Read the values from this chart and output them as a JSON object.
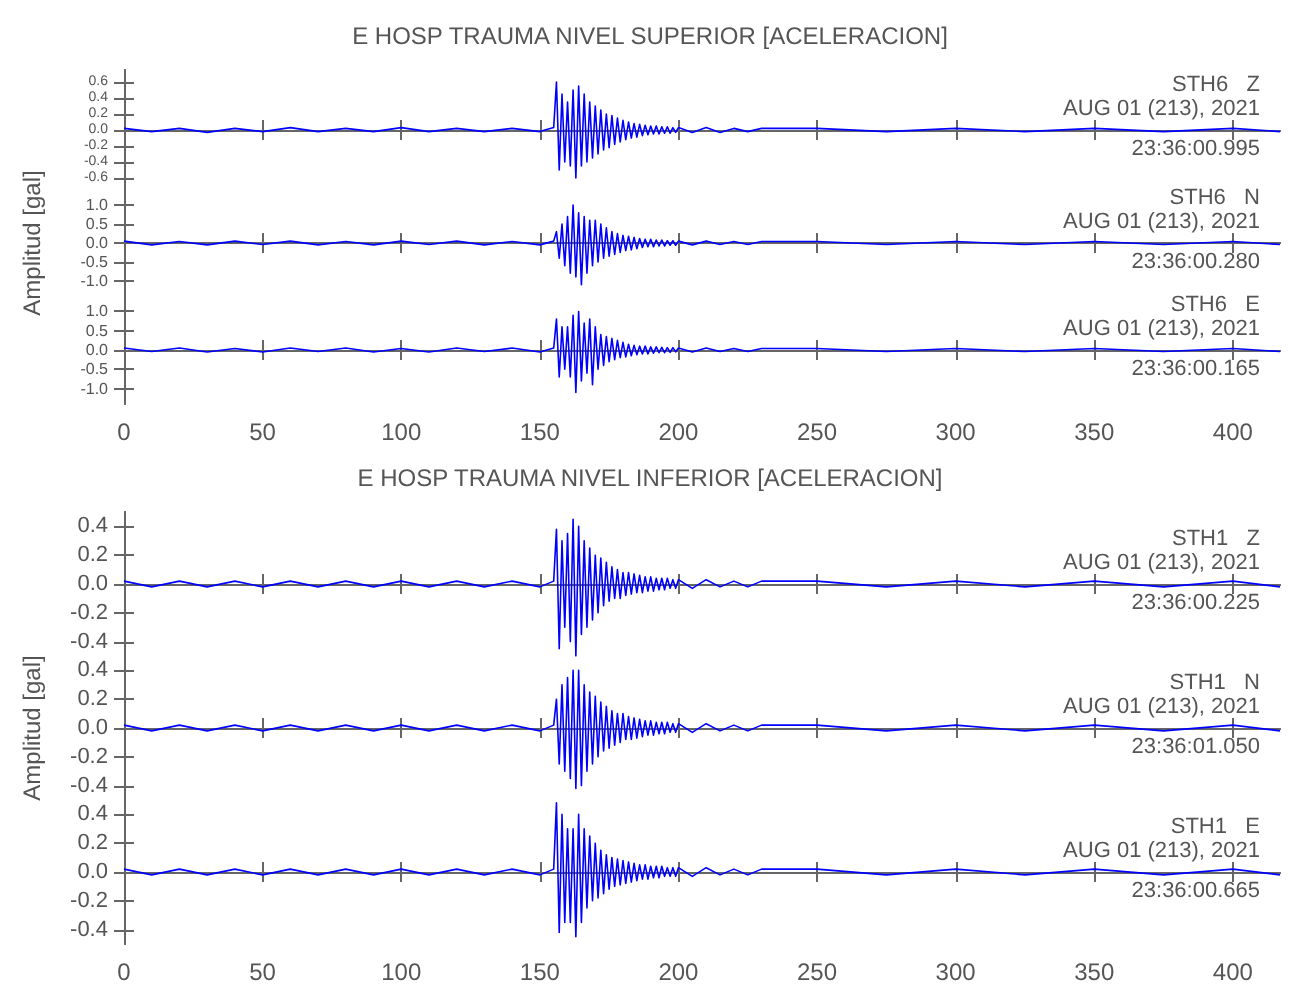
{
  "chart_data": [
    {
      "type": "line",
      "title": "E HOSP TRAUMA NIVEL SUPERIOR [ACELERACION]",
      "marker": "none",
      "tick_labels": "y",
      "xlim": [
        0,
        417
      ],
      "xticks": [
        0,
        50,
        100,
        150,
        200,
        250,
        300,
        350,
        400
      ],
      "ylim": [
        -0.75,
        0.75
      ],
      "yticks": [
        -0.6,
        -0.4,
        -0.2,
        {
          "value": 0,
          "label": "0.0"
        },
        0.2,
        0.4,
        0.6
      ],
      "annotations": [
        "STH6   Z",
        "AUG 01 (213), 2021",
        "23:36:00.995"
      ],
      "x": [
        0,
        10,
        20,
        30,
        40,
        50,
        60,
        70,
        80,
        90,
        100,
        110,
        120,
        130,
        140,
        150,
        155,
        156,
        157,
        158,
        159,
        160,
        161,
        162,
        163,
        164,
        165,
        166,
        167,
        168,
        169,
        170,
        171,
        172,
        173,
        174,
        175,
        176,
        177,
        178,
        179,
        180,
        181,
        182,
        183,
        184,
        185,
        186,
        187,
        188,
        189,
        190,
        191,
        192,
        193,
        194,
        195,
        196,
        197,
        198,
        199,
        200,
        205,
        210,
        215,
        220,
        225,
        230,
        250,
        275,
        300,
        325,
        350,
        375,
        400,
        417
      ],
      "series": [
        {
          "color": "#0000ff",
          "values": [
            0.02,
            -0.02,
            0.02,
            -0.03,
            0.02,
            -0.02,
            0.03,
            -0.02,
            0.02,
            -0.02,
            0.03,
            -0.02,
            0.02,
            -0.02,
            0.02,
            -0.02,
            0.03,
            0.6,
            -0.5,
            0.45,
            -0.4,
            0.35,
            -0.45,
            0.5,
            -0.6,
            0.55,
            -0.45,
            0.45,
            -0.4,
            0.35,
            -0.35,
            0.3,
            -0.3,
            0.25,
            -0.25,
            0.2,
            -0.22,
            0.18,
            -0.18,
            0.15,
            -0.15,
            0.12,
            -0.12,
            0.1,
            -0.1,
            0.08,
            -0.09,
            0.07,
            -0.07,
            0.06,
            -0.06,
            0.05,
            -0.05,
            0.05,
            -0.05,
            0.04,
            -0.04,
            0.04,
            -0.04,
            0.03,
            -0.03,
            0.03,
            -0.03,
            0.03,
            -0.03,
            0.02,
            -0.02,
            0.02,
            0.02,
            -0.02,
            0.02,
            -0.02,
            0.02,
            -0.02,
            0.02,
            -0.02
          ]
        }
      ]
    },
    {
      "type": "line",
      "ylabel": "Amplitud [gal]",
      "marker": "none",
      "tick_labels": "y",
      "xlim": [
        0,
        417
      ],
      "xticks": [
        0,
        50,
        100,
        150,
        200,
        250,
        300,
        350,
        400
      ],
      "ylim": [
        -1.4,
        1.4
      ],
      "yticks": [
        {
          "value": -1,
          "label": "-1.0"
        },
        -0.5,
        {
          "value": 0,
          "label": "0.0"
        },
        0.5,
        {
          "value": 1,
          "label": "1.0"
        }
      ],
      "annotations": [
        "STH6   N",
        "AUG 01 (213), 2021",
        "23:36:00.280"
      ],
      "x": [
        0,
        10,
        20,
        30,
        40,
        50,
        60,
        70,
        80,
        90,
        100,
        110,
        120,
        130,
        140,
        150,
        155,
        156,
        157,
        158,
        159,
        160,
        161,
        162,
        163,
        164,
        165,
        166,
        167,
        168,
        169,
        170,
        171,
        172,
        173,
        174,
        175,
        176,
        177,
        178,
        179,
        180,
        181,
        182,
        183,
        184,
        185,
        186,
        187,
        188,
        189,
        190,
        191,
        192,
        193,
        194,
        195,
        196,
        197,
        198,
        199,
        200,
        205,
        210,
        215,
        220,
        225,
        230,
        250,
        275,
        300,
        325,
        350,
        375,
        400,
        417
      ],
      "series": [
        {
          "color": "#0000ff",
          "values": [
            0.05,
            -0.05,
            0.04,
            -0.05,
            0.05,
            -0.04,
            0.05,
            -0.05,
            0.04,
            -0.05,
            0.05,
            -0.04,
            0.05,
            -0.05,
            0.04,
            -0.05,
            0.05,
            0.3,
            -0.4,
            0.5,
            -0.6,
            0.7,
            -0.8,
            1.0,
            -0.9,
            0.8,
            -1.1,
            0.7,
            -0.8,
            0.6,
            -0.6,
            0.6,
            -0.5,
            0.5,
            -0.4,
            0.4,
            -0.35,
            0.3,
            -0.3,
            0.25,
            -0.25,
            0.2,
            -0.2,
            0.18,
            -0.18,
            0.15,
            -0.15,
            0.12,
            -0.12,
            0.1,
            -0.1,
            0.1,
            -0.1,
            0.08,
            -0.08,
            0.08,
            -0.08,
            0.06,
            -0.06,
            0.06,
            -0.06,
            0.05,
            -0.05,
            0.05,
            -0.04,
            0.04,
            -0.04,
            0.04,
            0.04,
            -0.04,
            0.04,
            -0.04,
            0.04,
            -0.04,
            0.04,
            -0.04
          ]
        }
      ]
    },
    {
      "type": "line",
      "marker": "none",
      "xlim": [
        0,
        417
      ],
      "xticks": [
        0,
        50,
        100,
        150,
        200,
        250,
        300,
        350,
        400
      ],
      "ylim": [
        -1.4,
        1.4
      ],
      "yticks": [
        {
          "value": -1,
          "label": "-1.0"
        },
        -0.5,
        {
          "value": 0,
          "label": "0.0"
        },
        0.5,
        {
          "value": 1,
          "label": "1.0"
        }
      ],
      "annotations": [
        "STH6   E",
        "AUG 01 (213), 2021",
        "23:36:00.165"
      ],
      "x": [
        0,
        10,
        20,
        30,
        40,
        50,
        60,
        70,
        80,
        90,
        100,
        110,
        120,
        130,
        140,
        150,
        155,
        156,
        157,
        158,
        159,
        160,
        161,
        162,
        163,
        164,
        165,
        166,
        167,
        168,
        169,
        170,
        171,
        172,
        173,
        174,
        175,
        176,
        177,
        178,
        179,
        180,
        181,
        182,
        183,
        184,
        185,
        186,
        187,
        188,
        189,
        190,
        191,
        192,
        193,
        194,
        195,
        196,
        197,
        198,
        199,
        200,
        205,
        210,
        215,
        220,
        225,
        230,
        250,
        275,
        300,
        325,
        350,
        375,
        400,
        417
      ],
      "series": [
        {
          "color": "#0000ff",
          "values": [
            0.05,
            -0.04,
            0.05,
            -0.05,
            0.04,
            -0.05,
            0.05,
            -0.04,
            0.05,
            -0.05,
            0.04,
            -0.05,
            0.05,
            -0.04,
            0.05,
            -0.05,
            0.05,
            0.8,
            -0.7,
            0.6,
            -0.5,
            0.6,
            -0.7,
            0.9,
            -1.1,
            1.0,
            -0.8,
            0.7,
            -0.6,
            0.8,
            -0.9,
            0.6,
            -0.5,
            0.4,
            -0.4,
            0.35,
            -0.3,
            0.3,
            -0.25,
            0.25,
            -0.2,
            0.2,
            -0.18,
            0.15,
            -0.15,
            0.12,
            -0.12,
            0.1,
            -0.1,
            0.1,
            -0.1,
            0.08,
            -0.08,
            0.08,
            -0.07,
            0.07,
            -0.07,
            0.06,
            -0.06,
            0.06,
            -0.05,
            0.05,
            -0.05,
            0.05,
            -0.04,
            0.04,
            -0.04,
            0.04,
            0.04,
            -0.04,
            0.04,
            -0.04,
            0.04,
            -0.04,
            0.04,
            -0.04
          ]
        }
      ]
    },
    {
      "type": "line",
      "title": "E HOSP TRAUMA NIVEL INFERIOR [ACELERACION]",
      "marker": "none",
      "tick_labels": "y",
      "xlim": [
        0,
        417
      ],
      "xticks": [
        0,
        50,
        100,
        150,
        200,
        250,
        300,
        350,
        400
      ],
      "ylim": [
        -0.5,
        0.5
      ],
      "yticks": [
        -0.4,
        -0.2,
        {
          "value": 0,
          "label": "0.0"
        },
        0.2,
        0.4
      ],
      "annotations": [
        "STH1   Z",
        "AUG 01 (213), 2021",
        "23:36:00.225"
      ],
      "x": [
        0,
        10,
        20,
        30,
        40,
        50,
        60,
        70,
        80,
        90,
        100,
        110,
        120,
        130,
        140,
        150,
        155,
        156,
        157,
        158,
        159,
        160,
        161,
        162,
        163,
        164,
        165,
        166,
        167,
        168,
        169,
        170,
        171,
        172,
        173,
        174,
        175,
        176,
        177,
        178,
        179,
        180,
        181,
        182,
        183,
        184,
        185,
        186,
        187,
        188,
        189,
        190,
        191,
        192,
        193,
        194,
        195,
        196,
        197,
        198,
        199,
        200,
        205,
        210,
        215,
        220,
        225,
        230,
        250,
        275,
        300,
        325,
        350,
        375,
        400,
        417
      ],
      "series": [
        {
          "color": "#0000ff",
          "values": [
            0.02,
            -0.02,
            0.02,
            -0.02,
            0.02,
            -0.02,
            0.02,
            -0.02,
            0.02,
            -0.02,
            0.02,
            -0.02,
            0.02,
            -0.02,
            0.02,
            -0.02,
            0.02,
            0.38,
            -0.45,
            0.3,
            -0.3,
            0.35,
            -0.4,
            0.45,
            -0.5,
            0.4,
            -0.35,
            0.3,
            -0.3,
            0.25,
            -0.25,
            0.2,
            -0.2,
            0.18,
            -0.15,
            0.15,
            -0.12,
            0.12,
            -0.1,
            0.1,
            -0.1,
            0.08,
            -0.08,
            0.08,
            -0.07,
            0.07,
            -0.06,
            0.06,
            -0.06,
            0.05,
            -0.05,
            0.05,
            -0.05,
            0.04,
            -0.04,
            0.04,
            -0.04,
            0.04,
            -0.03,
            0.03,
            -0.03,
            0.03,
            -0.03,
            0.03,
            -0.02,
            0.02,
            -0.02,
            0.02,
            0.02,
            -0.02,
            0.02,
            -0.02,
            0.02,
            -0.02,
            0.02,
            -0.02
          ]
        }
      ]
    },
    {
      "type": "line",
      "ylabel": "Amplitud [gal]",
      "marker": "none",
      "tick_labels": "y",
      "xlim": [
        0,
        417
      ],
      "xticks": [
        0,
        50,
        100,
        150,
        200,
        250,
        300,
        350,
        400
      ],
      "ylim": [
        -0.5,
        0.5
      ],
      "yticks": [
        -0.4,
        -0.2,
        {
          "value": 0,
          "label": "0.0"
        },
        0.2,
        0.4
      ],
      "annotations": [
        "STH1   N",
        "AUG 01 (213), 2021",
        "23:36:01.050"
      ],
      "x": [
        0,
        10,
        20,
        30,
        40,
        50,
        60,
        70,
        80,
        90,
        100,
        110,
        120,
        130,
        140,
        150,
        155,
        156,
        157,
        158,
        159,
        160,
        161,
        162,
        163,
        164,
        165,
        166,
        167,
        168,
        169,
        170,
        171,
        172,
        173,
        174,
        175,
        176,
        177,
        178,
        179,
        180,
        181,
        182,
        183,
        184,
        185,
        186,
        187,
        188,
        189,
        190,
        191,
        192,
        193,
        194,
        195,
        196,
        197,
        198,
        199,
        200,
        205,
        210,
        215,
        220,
        225,
        230,
        250,
        275,
        300,
        325,
        350,
        375,
        400,
        417
      ],
      "series": [
        {
          "color": "#0000ff",
          "values": [
            0.02,
            -0.02,
            0.02,
            -0.02,
            0.02,
            -0.02,
            0.02,
            -0.02,
            0.02,
            -0.02,
            0.02,
            -0.02,
            0.02,
            -0.02,
            0.02,
            -0.02,
            0.02,
            0.2,
            -0.25,
            0.3,
            -0.3,
            0.35,
            -0.35,
            0.4,
            -0.42,
            0.4,
            -0.4,
            0.3,
            -0.3,
            0.25,
            -0.25,
            0.22,
            -0.2,
            0.18,
            -0.16,
            0.15,
            -0.14,
            0.12,
            -0.12,
            0.1,
            -0.1,
            0.1,
            -0.08,
            0.08,
            -0.08,
            0.07,
            -0.07,
            0.06,
            -0.06,
            0.05,
            -0.05,
            0.05,
            -0.05,
            0.04,
            -0.04,
            0.04,
            -0.04,
            0.04,
            -0.03,
            0.03,
            -0.03,
            0.03,
            -0.03,
            0.03,
            -0.02,
            0.02,
            -0.02,
            0.02,
            0.02,
            -0.02,
            0.02,
            -0.02,
            0.02,
            -0.02,
            0.02,
            -0.02
          ]
        }
      ]
    },
    {
      "type": "line",
      "marker": "none",
      "xlim": [
        0,
        417
      ],
      "xticks": [
        0,
        50,
        100,
        150,
        200,
        250,
        300,
        350,
        400
      ],
      "ylim": [
        -0.5,
        0.5
      ],
      "yticks": [
        -0.4,
        -0.2,
        {
          "value": 0,
          "label": "0.0"
        },
        0.2,
        0.4
      ],
      "annotations": [
        "STH1   E",
        "AUG 01 (213), 2021",
        "23:36:00.665"
      ],
      "x": [
        0,
        10,
        20,
        30,
        40,
        50,
        60,
        70,
        80,
        90,
        100,
        110,
        120,
        130,
        140,
        150,
        155,
        156,
        157,
        158,
        159,
        160,
        161,
        162,
        163,
        164,
        165,
        166,
        167,
        168,
        169,
        170,
        171,
        172,
        173,
        174,
        175,
        176,
        177,
        178,
        179,
        180,
        181,
        182,
        183,
        184,
        185,
        186,
        187,
        188,
        189,
        190,
        191,
        192,
        193,
        194,
        195,
        196,
        197,
        198,
        199,
        200,
        205,
        210,
        215,
        220,
        225,
        230,
        250,
        275,
        300,
        325,
        350,
        375,
        400,
        417
      ],
      "series": [
        {
          "color": "#0000ff",
          "values": [
            0.02,
            -0.02,
            0.02,
            -0.02,
            0.02,
            -0.02,
            0.02,
            -0.02,
            0.02,
            -0.02,
            0.02,
            -0.02,
            0.02,
            -0.02,
            0.02,
            -0.02,
            0.02,
            0.48,
            -0.42,
            0.4,
            -0.35,
            0.3,
            -0.35,
            0.3,
            -0.45,
            0.4,
            -0.35,
            0.3,
            -0.25,
            0.25,
            -0.2,
            0.2,
            -0.18,
            0.15,
            -0.15,
            0.12,
            -0.12,
            0.1,
            -0.1,
            0.09,
            -0.09,
            0.08,
            -0.08,
            0.07,
            -0.07,
            0.06,
            -0.06,
            0.05,
            -0.05,
            0.05,
            -0.05,
            0.04,
            -0.04,
            0.04,
            -0.04,
            0.04,
            -0.03,
            0.03,
            -0.03,
            0.03,
            -0.03,
            0.03,
            -0.03,
            0.03,
            -0.02,
            0.02,
            -0.02,
            0.02,
            0.02,
            -0.02,
            0.02,
            -0.02,
            0.02,
            -0.02,
            0.02,
            -0.02
          ]
        }
      ]
    }
  ]
}
